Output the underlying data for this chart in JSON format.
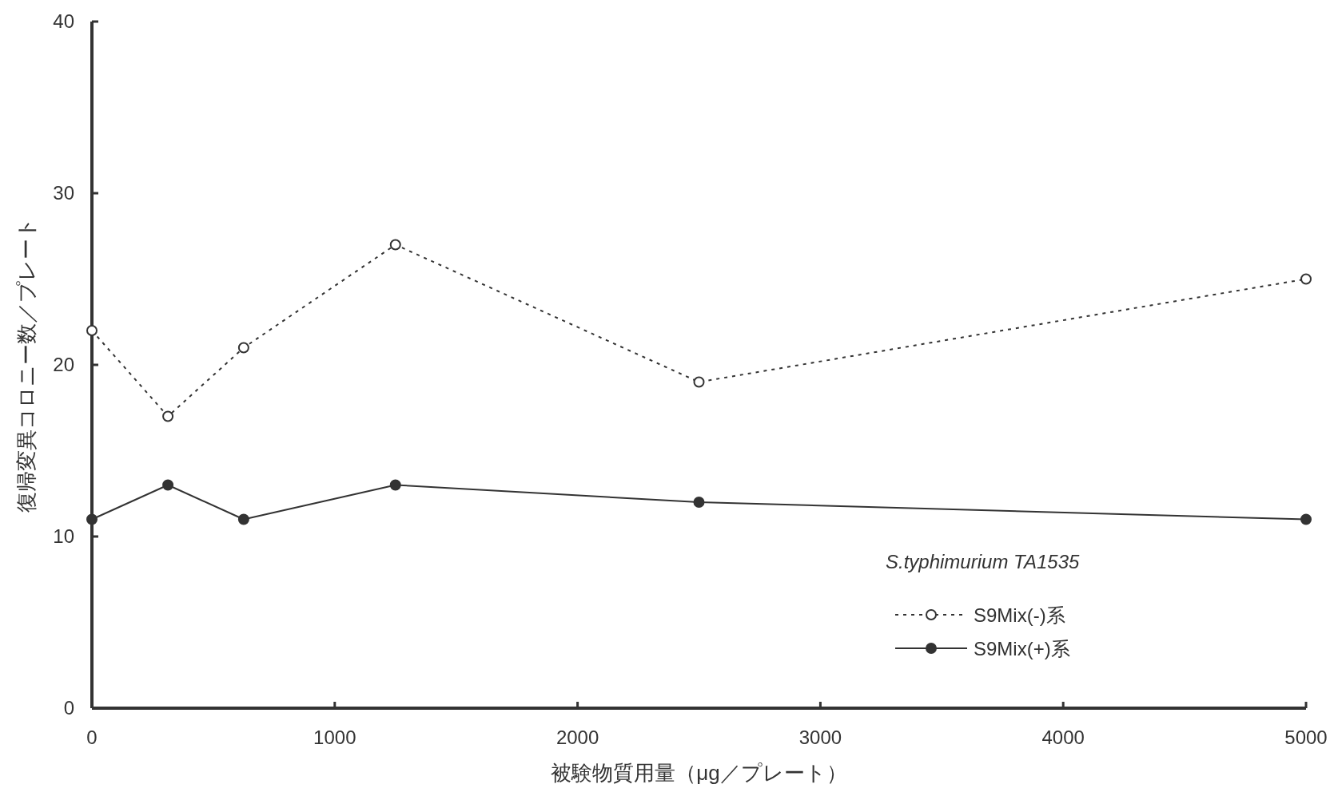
{
  "chart_data": {
    "type": "line",
    "xlabel": "被験物質用量（μg／プレート）",
    "ylabel": "復帰変異コロニー数／プレート",
    "legend_title": "S.typhimurium  TA1535",
    "legend": "bottom right",
    "marker": "circle",
    "grid": false,
    "x": [
      0,
      313,
      625,
      1250,
      2500,
      5000
    ],
    "xlim": [
      0,
      5000
    ],
    "xticks": [
      0,
      1000,
      2000,
      3000,
      4000,
      5000
    ],
    "ylim": [
      0,
      40
    ],
    "yticks": [
      0,
      10,
      20,
      30,
      40
    ],
    "series": [
      {
        "name": "S9Mix(-)系",
        "color": "#333333",
        "line_style": "dotted",
        "values": [
          22,
          17,
          21,
          27,
          19,
          25
        ]
      },
      {
        "name": "S9Mix(+)系",
        "color": "#333333",
        "line_style": "solid",
        "values": [
          11,
          13,
          11,
          13,
          12,
          11
        ]
      }
    ]
  }
}
